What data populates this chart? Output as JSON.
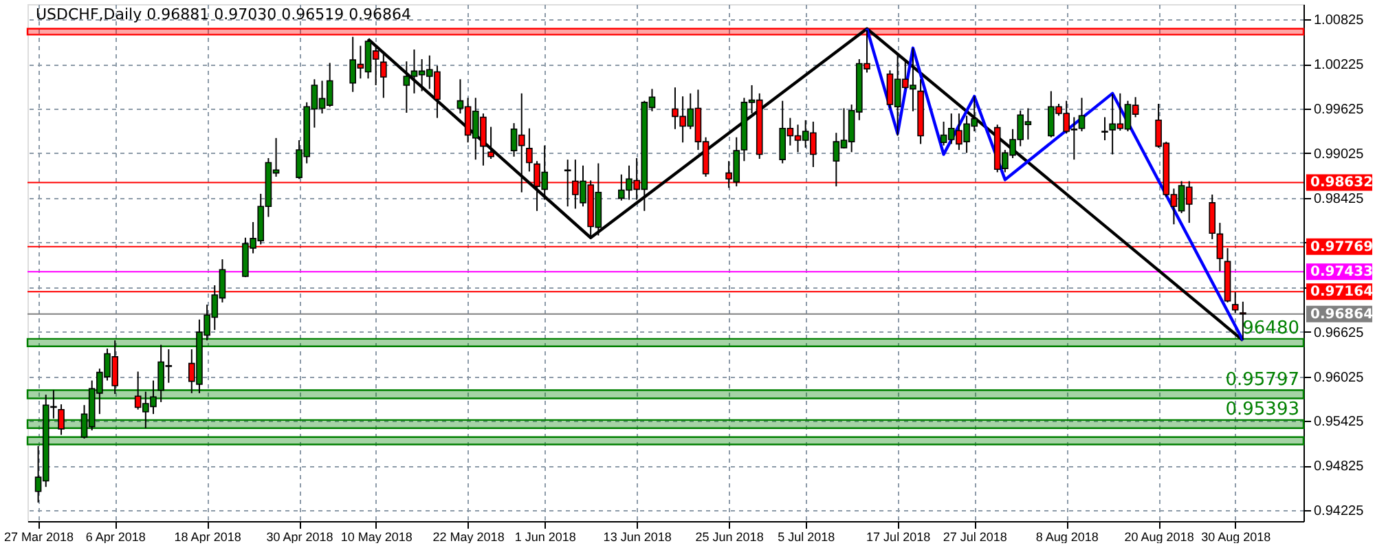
{
  "chart_data": {
    "type": "candlestick",
    "title": "USDCHF,Daily  0.96881 0.97030 0.96519 0.96864",
    "x": [
      "2018-03-27",
      "2018-03-28",
      "2018-03-29",
      "2018-03-30",
      "2018-04-02",
      "2018-04-03",
      "2018-04-04",
      "2018-04-05",
      "2018-04-06",
      "2018-04-09",
      "2018-04-10",
      "2018-04-11",
      "2018-04-12",
      "2018-04-13",
      "2018-04-16",
      "2018-04-17",
      "2018-04-18",
      "2018-04-19",
      "2018-04-20",
      "2018-04-23",
      "2018-04-24",
      "2018-04-25",
      "2018-04-26",
      "2018-04-27",
      "2018-04-30",
      "2018-05-01",
      "2018-05-02",
      "2018-05-03",
      "2018-05-04",
      "2018-05-07",
      "2018-05-08",
      "2018-05-09",
      "2018-05-10",
      "2018-05-11",
      "2018-05-14",
      "2018-05-15",
      "2018-05-16",
      "2018-05-17",
      "2018-05-18",
      "2018-05-21",
      "2018-05-22",
      "2018-05-23",
      "2018-05-24",
      "2018-05-25",
      "2018-05-28",
      "2018-05-29",
      "2018-05-30",
      "2018-05-31",
      "2018-06-01",
      "2018-06-04",
      "2018-06-05",
      "2018-06-06",
      "2018-06-07",
      "2018-06-08",
      "2018-06-11",
      "2018-06-12",
      "2018-06-13",
      "2018-06-14",
      "2018-06-15",
      "2018-06-18",
      "2018-06-19",
      "2018-06-20",
      "2018-06-21",
      "2018-06-22",
      "2018-06-25",
      "2018-06-26",
      "2018-06-27",
      "2018-06-28",
      "2018-06-29",
      "2018-07-02",
      "2018-07-03",
      "2018-07-04",
      "2018-07-05",
      "2018-07-06",
      "2018-07-09",
      "2018-07-10",
      "2018-07-11",
      "2018-07-12",
      "2018-07-13",
      "2018-07-16",
      "2018-07-17",
      "2018-07-18",
      "2018-07-19",
      "2018-07-20",
      "2018-07-23",
      "2018-07-24",
      "2018-07-25",
      "2018-07-26",
      "2018-07-27",
      "2018-07-30",
      "2018-07-31",
      "2018-08-01",
      "2018-08-02",
      "2018-08-03",
      "2018-08-06",
      "2018-08-07",
      "2018-08-08",
      "2018-08-09",
      "2018-08-10",
      "2018-08-13",
      "2018-08-14",
      "2018-08-15",
      "2018-08-16",
      "2018-08-17",
      "2018-08-20",
      "2018-08-21",
      "2018-08-22",
      "2018-08-23",
      "2018-08-24",
      "2018-08-27",
      "2018-08-28",
      "2018-08-29",
      "2018-08-30",
      "2018-08-31"
    ],
    "ohlc": [
      [
        0.9448,
        0.9509,
        0.9433,
        0.9467
      ],
      [
        0.9462,
        0.9578,
        0.9454,
        0.9564
      ],
      [
        0.9561,
        0.9584,
        0.9546,
        0.9562
      ],
      [
        0.9558,
        0.9565,
        0.9524,
        0.9532
      ],
      [
        0.9521,
        0.9564,
        0.9519,
        0.9552
      ],
      [
        0.9535,
        0.9597,
        0.953,
        0.9586
      ],
      [
        0.958,
        0.9613,
        0.9552,
        0.9608
      ],
      [
        0.9602,
        0.964,
        0.9597,
        0.9633
      ],
      [
        0.9629,
        0.9651,
        0.9579,
        0.959
      ],
      [
        0.9576,
        0.9609,
        0.9558,
        0.9561
      ],
      [
        0.9555,
        0.9582,
        0.9533,
        0.9566
      ],
      [
        0.9562,
        0.9597,
        0.9552,
        0.9575
      ],
      [
        0.9584,
        0.9645,
        0.9568,
        0.9622
      ],
      [
        0.9617,
        0.9639,
        0.9594,
        0.9616
      ],
      [
        0.962,
        0.9639,
        0.958,
        0.9596
      ],
      [
        0.9592,
        0.9679,
        0.958,
        0.9662
      ],
      [
        0.9658,
        0.9699,
        0.9651,
        0.9685
      ],
      [
        0.9682,
        0.9725,
        0.9665,
        0.9712
      ],
      [
        0.9708,
        0.976,
        0.9702,
        0.9746
      ],
      [
        0.9737,
        0.9789,
        0.9736,
        0.9781
      ],
      [
        0.9775,
        0.981,
        0.9768,
        0.9788
      ],
      [
        0.9785,
        0.9848,
        0.978,
        0.9831
      ],
      [
        0.9831,
        0.9896,
        0.9817,
        0.989
      ],
      [
        0.9876,
        0.9923,
        0.9871,
        0.988
      ],
      [
        0.987,
        0.992,
        0.9868,
        0.9907
      ],
      [
        0.9898,
        0.9971,
        0.9889,
        0.9965
      ],
      [
        0.9962,
        1.0002,
        0.9937,
        0.9994
      ],
      [
        0.9963,
        1.0,
        0.9956,
        0.9976
      ],
      [
        0.9967,
        1.0024,
        0.9965,
        1.0
      ],
      [
        0.9997,
        1.0059,
        0.9985,
        1.0028
      ],
      [
        1.0022,
        1.0047,
        1.0003,
        1.0017
      ],
      [
        1.0012,
        1.0056,
        1.0003,
        1.0053
      ],
      [
        1.004,
        1.0047,
        0.9994,
        1.0029
      ],
      [
        1.0025,
        1.0036,
        0.9977,
        1.0005
      ],
      [
        0.9994,
        1.0026,
        0.9957,
        1.0006
      ],
      [
        1.0006,
        1.0042,
        0.9983,
        1.0013
      ],
      [
        1.0008,
        1.0029,
        0.9986,
        1.0013
      ],
      [
        1.0006,
        1.0034,
        0.9989,
        1.0015
      ],
      [
        1.0012,
        1.002,
        0.995,
        0.9975
      ],
      [
        0.9963,
        1.0002,
        0.9956,
        0.9973
      ],
      [
        0.9965,
        0.9977,
        0.9917,
        0.9927
      ],
      [
        0.9923,
        0.9977,
        0.9894,
        0.9959
      ],
      [
        0.9951,
        0.9956,
        0.9886,
        0.9912
      ],
      [
        0.9904,
        0.9938,
        0.9895,
        0.9898
      ],
      [
        0.9906,
        0.9943,
        0.9898,
        0.9935
      ],
      [
        0.9927,
        0.9983,
        0.985,
        0.9913
      ],
      [
        0.9909,
        0.9936,
        0.9878,
        0.989
      ],
      [
        0.9888,
        0.9892,
        0.9825,
        0.9858
      ],
      [
        0.9854,
        0.9913,
        0.984,
        0.9877
      ],
      [
        0.988,
        0.9894,
        0.9831,
        0.9879
      ],
      [
        0.9865,
        0.9894,
        0.9828,
        0.9847
      ],
      [
        0.9836,
        0.9886,
        0.9831,
        0.9865
      ],
      [
        0.986,
        0.9866,
        0.9789,
        0.9804
      ],
      [
        0.9803,
        0.9889,
        0.9792,
        0.985
      ],
      [
        0.9842,
        0.9874,
        0.9839,
        0.9853
      ],
      [
        0.9853,
        0.9886,
        0.984,
        0.9868
      ],
      [
        0.9866,
        0.9896,
        0.984,
        0.9854
      ],
      [
        0.9854,
        0.9973,
        0.9825,
        0.9971
      ],
      [
        0.9964,
        0.9989,
        0.9959,
        0.9978
      ],
      [
        0.9962,
        0.9991,
        0.9935,
        0.9952
      ],
      [
        0.9952,
        0.9979,
        0.9917,
        0.9939
      ],
      [
        0.9939,
        0.9983,
        0.9935,
        0.9962
      ],
      [
        0.9963,
        0.9988,
        0.9907,
        0.9918
      ],
      [
        0.9918,
        0.9924,
        0.9871,
        0.9875
      ],
      [
        0.9876,
        0.9892,
        0.9856,
        0.9868
      ],
      [
        0.9864,
        0.9924,
        0.9858,
        0.9906
      ],
      [
        0.9907,
        0.9977,
        0.9892,
        0.9971
      ],
      [
        0.9971,
        0.9994,
        0.9956,
        0.9974
      ],
      [
        0.9974,
        0.9983,
        0.9895,
        0.9901
      ],
      [
        0.9894,
        0.9973,
        0.9889,
        0.9936
      ],
      [
        0.9936,
        0.995,
        0.9913,
        0.9926
      ],
      [
        0.9926,
        0.9941,
        0.9904,
        0.992
      ],
      [
        0.992,
        0.9947,
        0.991,
        0.9932
      ],
      [
        0.993,
        0.9945,
        0.9884,
        0.9901
      ],
      [
        0.9892,
        0.993,
        0.9858,
        0.9918
      ],
      [
        0.991,
        0.9963,
        0.9909,
        0.992
      ],
      [
        0.9918,
        0.9968,
        0.9904,
        0.996
      ],
      [
        0.9958,
        1.0029,
        0.9947,
        1.0023
      ],
      [
        1.0023,
        1.0068,
        1.0011,
        1.0016
      ],
      [
        1.0009,
        1.0014,
        0.9963,
        0.9968
      ],
      [
        0.9965,
        1.0035,
        0.9926,
        1.0002
      ],
      [
        1.0002,
        1.0029,
        0.9989,
        0.9991
      ],
      [
        0.9989,
        1.0044,
        0.9959,
        0.9994
      ],
      [
        0.9986,
        1.0002,
        0.9915,
        0.9926
      ],
      [
        0.9917,
        0.9945,
        0.9913,
        0.9927
      ],
      [
        0.9921,
        0.9956,
        0.9915,
        0.9936
      ],
      [
        0.9933,
        0.9956,
        0.9907,
        0.9915
      ],
      [
        0.9918,
        0.9953,
        0.9903,
        0.9942
      ],
      [
        0.9939,
        0.9979,
        0.9932,
        0.9949
      ],
      [
        0.9937,
        0.9941,
        0.9877,
        0.9881
      ],
      [
        0.9882,
        0.9907,
        0.9877,
        0.9903
      ],
      [
        0.99,
        0.9935,
        0.9896,
        0.9921
      ],
      [
        0.9921,
        0.996,
        0.9912,
        0.9954
      ],
      [
        0.9941,
        0.9963,
        0.9921,
        0.9945
      ],
      [
        0.9926,
        0.9986,
        0.9924,
        0.9965
      ],
      [
        0.9965,
        0.9969,
        0.9953,
        0.9956
      ],
      [
        0.9956,
        0.9973,
        0.9929,
        0.9932
      ],
      [
        0.9935,
        0.9951,
        0.9894,
        0.9934
      ],
      [
        0.9936,
        0.9977,
        0.9932,
        0.9953
      ],
      [
        0.9932,
        0.9951,
        0.992,
        0.9931
      ],
      [
        0.9934,
        0.9982,
        0.9901,
        0.9942
      ],
      [
        0.9942,
        0.9983,
        0.9933,
        0.9936
      ],
      [
        0.9935,
        0.9973,
        0.9932,
        0.9968
      ],
      [
        0.9967,
        0.9978,
        0.9951,
        0.9955
      ],
      [
        0.9947,
        0.9969,
        0.991,
        0.9912
      ],
      [
        0.9916,
        0.9918,
        0.9844,
        0.9847
      ],
      [
        0.9847,
        0.9855,
        0.9807,
        0.9831
      ],
      [
        0.9825,
        0.9865,
        0.9822,
        0.9859
      ],
      [
        0.9857,
        0.9865,
        0.9809,
        0.9834
      ],
      [
        0.9836,
        0.9847,
        0.9787,
        0.9795
      ],
      [
        0.9794,
        0.9809,
        0.9744,
        0.9761
      ],
      [
        0.9757,
        0.9775,
        0.9702,
        0.9704
      ],
      [
        0.9699,
        0.9716,
        0.9688,
        0.9692
      ],
      [
        0.96881,
        0.9703,
        0.96519,
        0.96864
      ]
    ],
    "colors": [
      "#008000",
      "#008000",
      "#008000",
      "#ff0000",
      "#008000",
      "#008000",
      "#008000",
      "#008000",
      "#ff0000",
      "#ff0000",
      "#008000",
      "#008000",
      "#008000",
      "#ff0000",
      "#ff0000",
      "#008000",
      "#008000",
      "#008000",
      "#008000",
      "#008000",
      "#008000",
      "#008000",
      "#008000",
      "#008000",
      "#008000",
      "#008000",
      "#008000",
      "#008000",
      "#008000",
      "#008000",
      "#ff0000",
      "#008000",
      "#ff0000",
      "#ff0000",
      "#008000",
      "#008000",
      "#008000",
      "#008000",
      "#ff0000",
      "#008000",
      "#ff0000",
      "#008000",
      "#ff0000",
      "#ff0000",
      "#008000",
      "#ff0000",
      "#ff0000",
      "#ff0000",
      "#008000",
      "#ff0000",
      "#ff0000",
      "#008000",
      "#ff0000",
      "#008000",
      "#008000",
      "#008000",
      "#ff0000",
      "#008000",
      "#008000",
      "#ff0000",
      "#ff0000",
      "#008000",
      "#ff0000",
      "#ff0000",
      "#ff0000",
      "#008000",
      "#008000",
      "#008000",
      "#ff0000",
      "#008000",
      "#ff0000",
      "#ff0000",
      "#008000",
      "#ff0000",
      "#008000",
      "#008000",
      "#008000",
      "#008000",
      "#ff0000",
      "#ff0000",
      "#008000",
      "#ff0000",
      "#008000",
      "#ff0000",
      "#008000",
      "#008000",
      "#ff0000",
      "#008000",
      "#008000",
      "#ff0000",
      "#008000",
      "#008000",
      "#008000",
      "#008000",
      "#008000",
      "#ff0000",
      "#ff0000",
      "#ff0000",
      "#008000",
      "#ff0000",
      "#008000",
      "#ff0000",
      "#008000",
      "#ff0000",
      "#ff0000",
      "#ff0000",
      "#ff0000",
      "#008000",
      "#ff0000",
      "#ff0000",
      "#ff0000",
      "#ff0000",
      "#ff0000",
      "#ff0000"
    ],
    "series": [
      {
        "type": "line",
        "color": "#000000",
        "x": [
          "2018-05-09",
          "2018-06-07",
          "2018-07-13",
          "2018-08-31"
        ],
        "values": [
          1.0056,
          0.9789,
          1.007,
          0.9651
        ]
      },
      {
        "type": "line",
        "color": "#0000ff",
        "x": [
          "2018-07-13",
          "2018-07-17",
          "2018-07-19",
          "2018-07-23",
          "2018-07-27",
          "2018-07-31",
          "2018-08-14",
          "2018-08-31"
        ],
        "values": [
          1.007,
          0.9929,
          1.0044,
          0.9901,
          0.9979,
          0.9867,
          0.9983,
          0.9651
        ]
      }
    ],
    "ref_lines": [
      {
        "axis": "y",
        "value": 0.98632,
        "label": "0.98632",
        "color": "#ff0000"
      },
      {
        "axis": "y",
        "value": 0.97769,
        "label": "0.97769",
        "color": "#ff0000"
      },
      {
        "axis": "y",
        "value": 0.97433,
        "label": "0.97433",
        "color": "#ff00ff"
      },
      {
        "axis": "y",
        "value": 0.97164,
        "label": "0.97164",
        "color": "#ff0000"
      },
      {
        "axis": "y",
        "value": 0.96864,
        "label": "0.96864",
        "color": "#808080"
      }
    ],
    "bands": [
      {
        "axis": "y",
        "from": 1.0062,
        "to": 1.007,
        "color": "#ff0000"
      },
      {
        "axis": "y",
        "from": 0.9643,
        "to": 0.9653,
        "label": "96480",
        "color": "#008000"
      },
      {
        "axis": "y",
        "from": 0.9573,
        "to": 0.9584,
        "label": "0.95797",
        "color": "#008000"
      },
      {
        "axis": "y",
        "from": 0.9533,
        "to": 0.9544,
        "label": "0.95393",
        "color": "#008000"
      },
      {
        "axis": "y",
        "from": 0.9511,
        "to": 0.9521,
        "color": "#008000"
      }
    ],
    "xlim": [
      "2018-03-26T12:00",
      "2018-09-07"
    ],
    "ylim": [
      0.9408,
      1.0103
    ],
    "xticks": [
      {
        "value": "2018-03-27",
        "label": "27 Mar 2018"
      },
      {
        "value": "2018-04-06",
        "label": "6 Apr 2018"
      },
      {
        "value": "2018-04-18",
        "label": "18 Apr 2018"
      },
      {
        "value": "2018-04-30",
        "label": "30 Apr 2018"
      },
      {
        "value": "2018-05-10",
        "label": "10 May 2018"
      },
      {
        "value": "2018-05-22",
        "label": "22 May 2018"
      },
      {
        "value": "2018-06-01",
        "label": "1 Jun 2018"
      },
      {
        "value": "2018-06-13",
        "label": "13 Jun 2018"
      },
      {
        "value": "2018-06-25",
        "label": "25 Jun 2018"
      },
      {
        "value": "2018-07-05",
        "label": "5 Jul 2018"
      },
      {
        "value": "2018-07-17",
        "label": "17 Jul 2018"
      },
      {
        "value": "2018-07-27",
        "label": "27 Jul 2018"
      },
      {
        "value": "2018-08-08",
        "label": "8 Aug 2018"
      },
      {
        "value": "2018-08-20",
        "label": "20 Aug 2018"
      },
      {
        "value": "2018-08-30",
        "label": "30 Aug 2018"
      }
    ],
    "yticks": [
      1.00825,
      1.00225,
      0.99625,
      0.99025,
      0.98425,
      {
        "value": 0.97825,
        "label": null
      },
      {
        "value": 0.97225,
        "label": null
      },
      0.96625,
      0.96025,
      0.95425,
      0.94825,
      0.94225
    ],
    "grid": true
  }
}
